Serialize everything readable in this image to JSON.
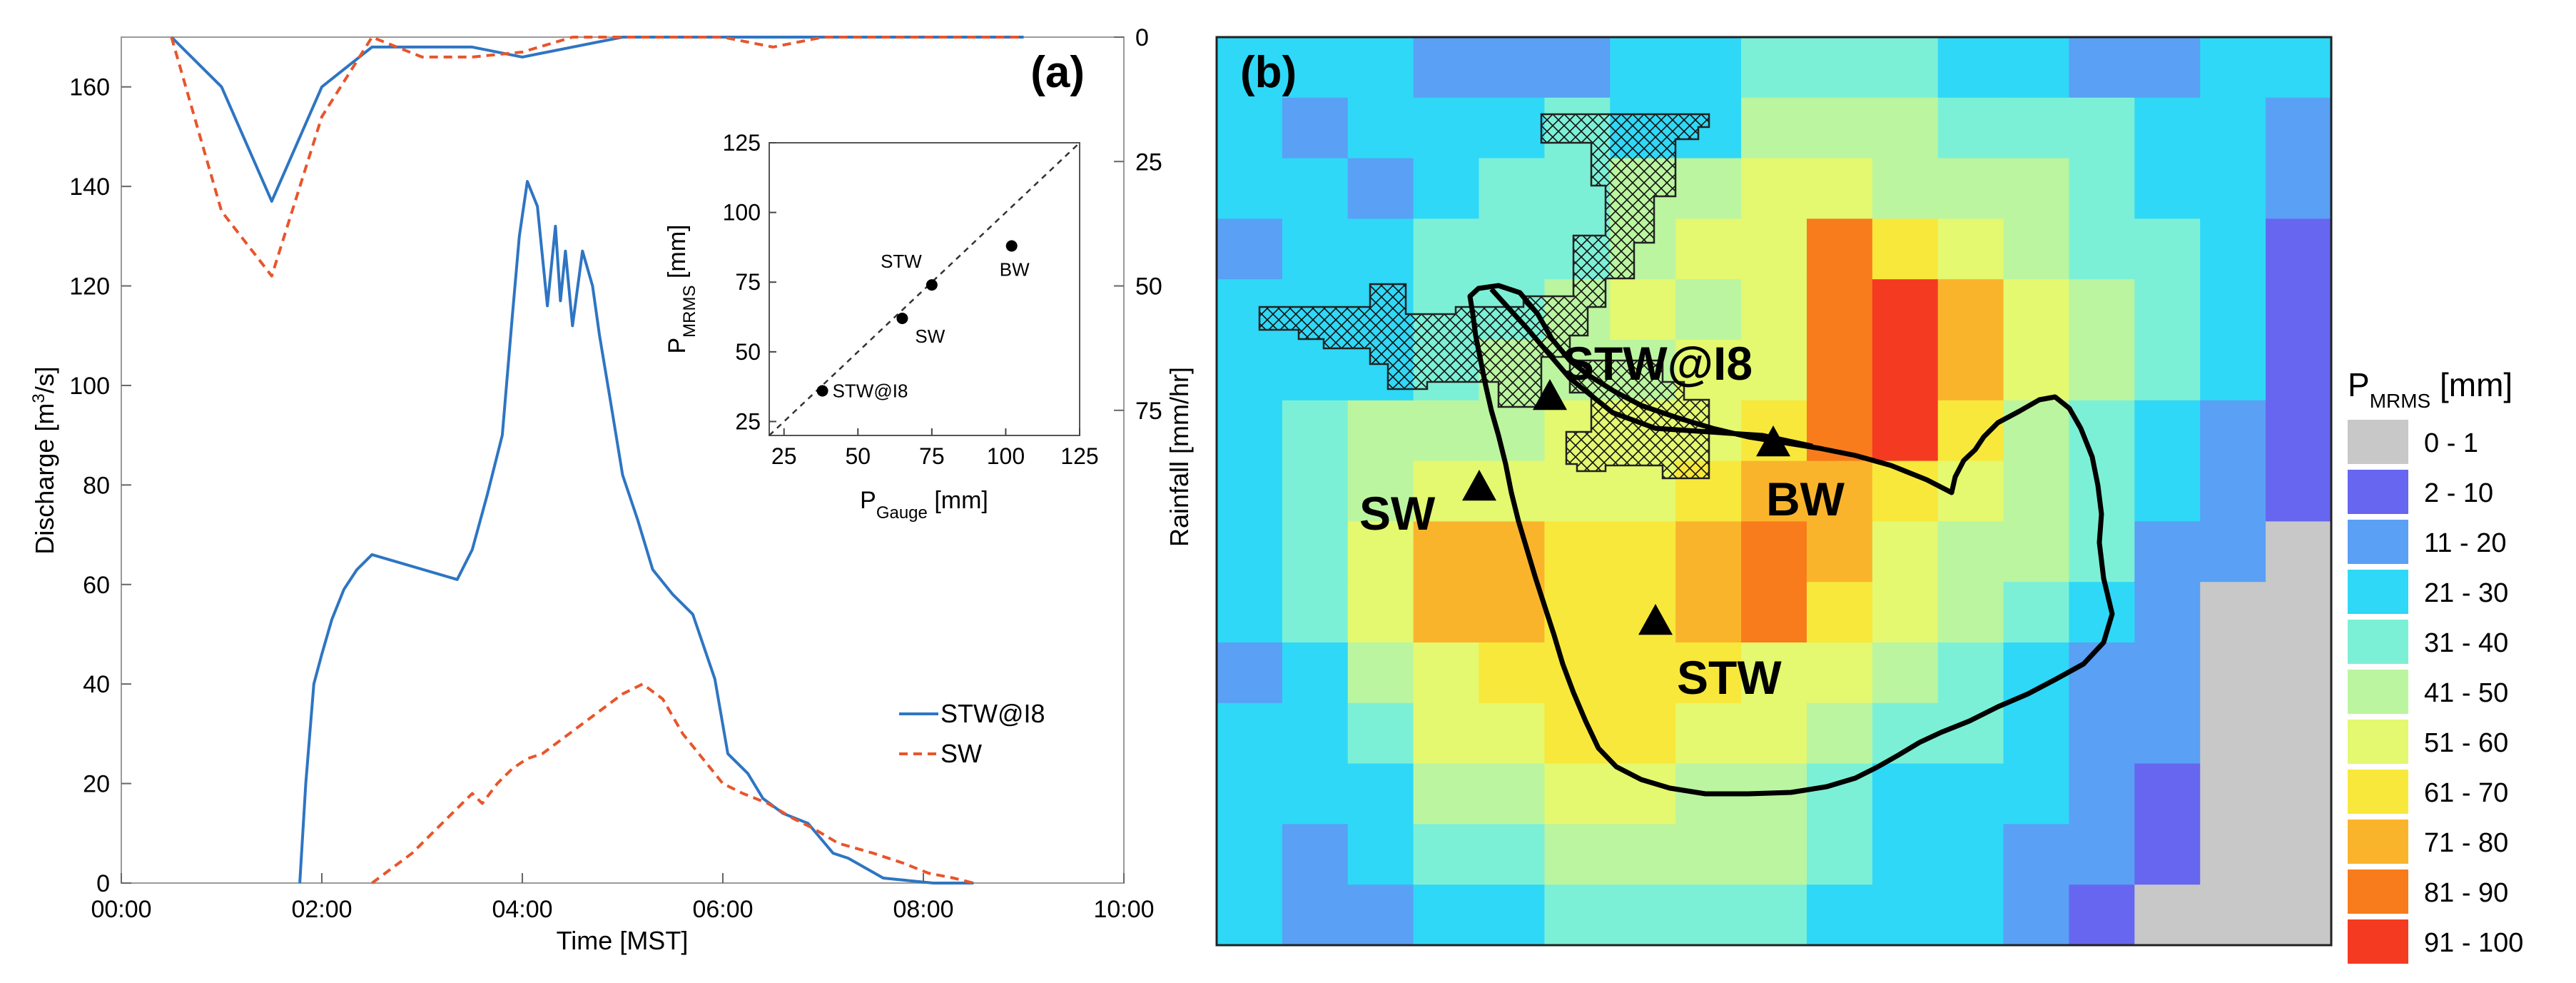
{
  "chart_data": [
    {
      "panel": "(a)",
      "type": "line",
      "xlabel": "Time [MST]",
      "ylabel_html": [
        "Discharge [m",
        "3",
        "/s]"
      ],
      "y2label": "Rainfall [mm/hr]",
      "xlim": [
        0,
        10
      ],
      "ylim": [
        0,
        170
      ],
      "y2lim": [
        0,
        170
      ],
      "y2_inverted": true,
      "xticks": [
        {
          "v": 0,
          "label": "00:00"
        },
        {
          "v": 2,
          "label": "02:00"
        },
        {
          "v": 4,
          "label": "04:00"
        },
        {
          "v": 6,
          "label": "06:00"
        },
        {
          "v": 8,
          "label": "08:00"
        },
        {
          "v": 10,
          "label": "10:00"
        }
      ],
      "yticks": [
        0,
        20,
        40,
        60,
        80,
        100,
        120,
        140,
        160
      ],
      "y2ticks": [
        0,
        25,
        50,
        75
      ],
      "legend": [
        {
          "name": "STW@I8",
          "color": "#2e75c3",
          "dash": "none"
        },
        {
          "name": "SW",
          "color": "#e8552b",
          "dash": "dashed"
        }
      ],
      "series": [
        {
          "name": "STW@I8",
          "kind": "discharge",
          "color": "#2e75c3",
          "dash": "none",
          "x": [
            1.78,
            1.84,
            1.92,
            2.0,
            2.1,
            2.22,
            2.35,
            2.5,
            3.35,
            3.5,
            3.65,
            3.8,
            3.9,
            3.97,
            4.05,
            4.15,
            4.25,
            4.33,
            4.38,
            4.43,
            4.5,
            4.6,
            4.7,
            4.77,
            4.87,
            5.0,
            5.15,
            5.3,
            5.5,
            5.7,
            5.92,
            6.05,
            6.25,
            6.4,
            6.6,
            6.85,
            7.1,
            7.25,
            7.6,
            8.1,
            8.5
          ],
          "y": [
            0,
            20,
            40,
            46,
            53,
            59,
            63,
            66,
            61,
            67,
            78,
            90,
            114,
            130,
            141,
            136,
            116,
            132,
            117,
            127,
            112,
            127,
            120,
            110,
            98,
            82,
            73,
            63,
            58,
            54,
            41,
            26,
            22,
            17,
            14,
            12,
            6,
            5,
            1,
            0,
            0
          ]
        },
        {
          "name": "SW",
          "kind": "discharge",
          "color": "#e8552b",
          "dash": "dashed",
          "x": [
            2.5,
            2.7,
            2.9,
            3.1,
            3.3,
            3.5,
            3.6,
            3.75,
            3.9,
            4.05,
            4.2,
            4.4,
            4.6,
            4.8,
            5.0,
            5.2,
            5.4,
            5.6,
            5.8,
            6.0,
            6.2,
            6.45,
            6.7,
            6.9,
            7.15,
            7.5,
            7.8,
            8.05,
            8.3,
            8.5
          ],
          "y": [
            0,
            3,
            6,
            10,
            14,
            18,
            16,
            20,
            23,
            25,
            26,
            29,
            32,
            35,
            38,
            40,
            37,
            30,
            25,
            20,
            18,
            16,
            13,
            11,
            8,
            6,
            4,
            2,
            1,
            0
          ]
        },
        {
          "name": "STW@I8 rainfall",
          "kind": "rainfall",
          "color": "#2e75c3",
          "dash": "none",
          "x": [
            0.5,
            1.0,
            1.5,
            2.0,
            2.5,
            3.0,
            3.5,
            4.0,
            4.5,
            5.0,
            6.0,
            7.0,
            8.0,
            9.0
          ],
          "y": [
            0,
            10,
            33,
            10,
            2,
            2,
            2,
            4,
            2,
            0,
            0,
            0,
            0,
            0
          ]
        },
        {
          "name": "SW rainfall",
          "kind": "rainfall",
          "color": "#e8552b",
          "dash": "dashed",
          "x": [
            0.5,
            1.0,
            1.5,
            2.0,
            2.5,
            3.0,
            3.5,
            4.0,
            4.5,
            5.0,
            6.0,
            6.5,
            7.0,
            8.0,
            9.0
          ],
          "y": [
            0,
            35,
            48,
            16,
            0,
            4,
            4,
            3,
            0,
            0,
            0,
            2,
            0,
            0,
            0
          ]
        }
      ]
    },
    {
      "panel": "inset",
      "type": "scatter",
      "xlabel_main": "P",
      "xlabel_sub": "Gauge",
      "xlabel_unit": " [mm]",
      "ylabel_main": "P",
      "ylabel_sub": "MRMS",
      "ylabel_unit": " [mm]",
      "xlim": [
        20,
        125
      ],
      "ylim": [
        20,
        125
      ],
      "xticks": [
        25,
        50,
        75,
        100,
        125
      ],
      "yticks": [
        25,
        50,
        75,
        100,
        125
      ],
      "reference_line": "1:1",
      "points": [
        {
          "label": "STW@I8",
          "x": 38,
          "y": 36,
          "pos": "right"
        },
        {
          "label": "SW",
          "x": 65,
          "y": 62,
          "pos": "below-right"
        },
        {
          "label": "STW",
          "x": 75,
          "y": 74,
          "pos": "above-left"
        },
        {
          "label": "BW",
          "x": 102,
          "y": 88,
          "pos": "below"
        }
      ]
    },
    {
      "panel": "(b)",
      "type": "heatmap",
      "title_main": "P",
      "title_sub": "MRMS",
      "title_unit": " [mm]",
      "legend_title": "P MRMS [mm]",
      "bins": [
        {
          "label": "0 - 1",
          "color": "#c8c8c8"
        },
        {
          "label": "2 - 10",
          "color": "#6666f0"
        },
        {
          "label": "11 - 20",
          "color": "#5aa0f5"
        },
        {
          "label": "21 - 30",
          "color": "#2fd8f6"
        },
        {
          "label": "31 - 40",
          "color": "#7cf0d6"
        },
        {
          "label": "41 - 50",
          "color": "#bbf5a0"
        },
        {
          "label": "51 - 60",
          "color": "#e4f870"
        },
        {
          "label": "61 - 70",
          "color": "#f8e83c"
        },
        {
          "label": "71 - 80",
          "color": "#fab42c"
        },
        {
          "label": "81 - 90",
          "color": "#f87c1c"
        },
        {
          "label": "91 - 100",
          "color": "#f53a22"
        }
      ],
      "grid_rows": [
        [
          3,
          3,
          3,
          2,
          2,
          2,
          3,
          3,
          4,
          4,
          4,
          3,
          3,
          2,
          2,
          3,
          3
        ],
        [
          3,
          2,
          3,
          3,
          3,
          4,
          3,
          3,
          5,
          5,
          5,
          4,
          4,
          4,
          3,
          3,
          2
        ],
        [
          3,
          3,
          2,
          3,
          4,
          4,
          5,
          5,
          6,
          6,
          5,
          5,
          5,
          4,
          3,
          3,
          2
        ],
        [
          2,
          3,
          3,
          4,
          4,
          4,
          5,
          6,
          6,
          9,
          7,
          6,
          5,
          4,
          4,
          3,
          1
        ],
        [
          3,
          3,
          3,
          4,
          4,
          5,
          6,
          5,
          6,
          9,
          10,
          8,
          6,
          5,
          4,
          3,
          1
        ],
        [
          3,
          3,
          3,
          4,
          5,
          5,
          5,
          6,
          6,
          9,
          10,
          8,
          6,
          5,
          4,
          3,
          1
        ],
        [
          3,
          4,
          5,
          5,
          5,
          6,
          6,
          6,
          7,
          9,
          10,
          7,
          5,
          4,
          3,
          2,
          1
        ],
        [
          3,
          4,
          5,
          6,
          6,
          6,
          6,
          7,
          8,
          8,
          7,
          6,
          5,
          4,
          3,
          2,
          1
        ],
        [
          3,
          4,
          6,
          8,
          8,
          7,
          7,
          8,
          9,
          8,
          6,
          5,
          5,
          4,
          2,
          2,
          0
        ],
        [
          3,
          4,
          6,
          8,
          8,
          7,
          7,
          8,
          9,
          7,
          6,
          5,
          4,
          3,
          2,
          0,
          0
        ],
        [
          2,
          3,
          5,
          6,
          7,
          7,
          7,
          7,
          6,
          6,
          5,
          4,
          3,
          2,
          2,
          0,
          0
        ],
        [
          3,
          3,
          4,
          6,
          6,
          7,
          7,
          6,
          6,
          5,
          4,
          4,
          3,
          2,
          2,
          0,
          0
        ],
        [
          3,
          3,
          3,
          5,
          5,
          6,
          6,
          5,
          5,
          4,
          3,
          3,
          3,
          2,
          1,
          0,
          0
        ],
        [
          3,
          2,
          3,
          4,
          4,
          5,
          5,
          5,
          5,
          4,
          3,
          3,
          2,
          2,
          1,
          0,
          0
        ],
        [
          3,
          2,
          2,
          3,
          3,
          4,
          4,
          4,
          4,
          3,
          3,
          3,
          2,
          1,
          0,
          0,
          0
        ]
      ],
      "stations": [
        {
          "label": "STW@I8",
          "x": 0.26,
          "y": 0.42
        },
        {
          "label": "SW",
          "x": 0.2,
          "y": 0.48
        },
        {
          "label": "BW",
          "x": 0.48,
          "y": 0.46
        },
        {
          "label": "STW",
          "x": 0.36,
          "y": 0.6
        }
      ]
    }
  ]
}
